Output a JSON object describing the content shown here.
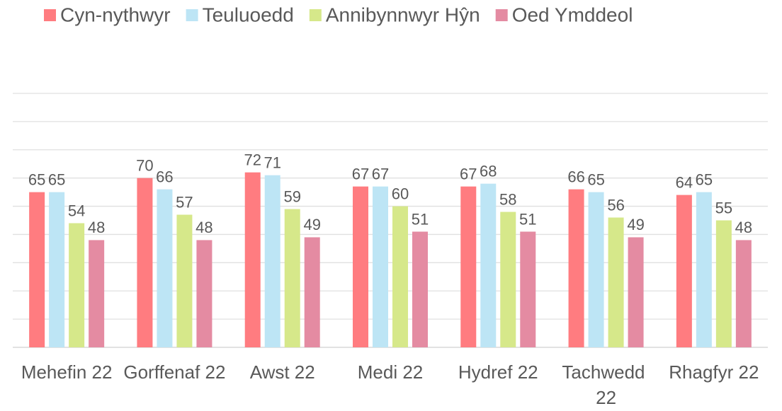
{
  "chart_data": {
    "type": "bar",
    "categories": [
      "Mehefin 22",
      "Gorffenaf 22",
      "Awst 22",
      "Medi 22",
      "Hydref 22",
      "Tachwedd 22",
      "Rhagfyr 22"
    ],
    "series": [
      {
        "name": "Cyn-nythwyr",
        "color": "#ff7c80",
        "values": [
          65,
          70,
          72,
          67,
          67,
          66,
          64
        ]
      },
      {
        "name": "Teuluoedd",
        "color": "#bde5f5",
        "values": [
          65,
          66,
          71,
          67,
          68,
          65,
          65
        ]
      },
      {
        "name": "Annibynnwyr Hŷn",
        "color": "#d6e88a",
        "values": [
          54,
          57,
          59,
          60,
          58,
          56,
          55
        ]
      },
      {
        "name": "Oed Ymddeol",
        "color": "#e48ba2",
        "values": [
          48,
          48,
          49,
          51,
          51,
          49,
          48
        ]
      }
    ],
    "ylim": [
      10,
      100
    ],
    "yticks": [
      10,
      20,
      30,
      40,
      50,
      60,
      70,
      80,
      90,
      100
    ],
    "grid": true,
    "legend": "top"
  }
}
